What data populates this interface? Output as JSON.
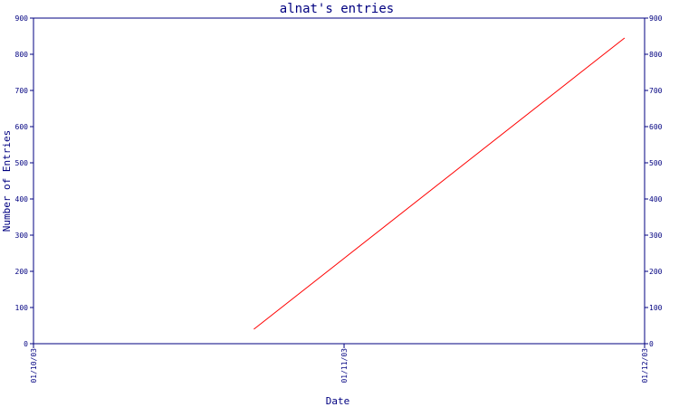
{
  "chart_data": {
    "type": "line",
    "title": "alnat's entries",
    "xlabel": "Date",
    "ylabel": "Number of Entries",
    "ylim": [
      0,
      900
    ],
    "yticks": [
      0,
      100,
      200,
      300,
      400,
      500,
      600,
      700,
      800,
      900
    ],
    "xlim": [
      "2003-10-01",
      "2003-12-01"
    ],
    "xticks": [
      {
        "date": "2003-10-01",
        "label": "01/10/03"
      },
      {
        "date": "2003-11-01",
        "label": "01/11/03"
      },
      {
        "date": "2003-12-01",
        "label": "01/12/03"
      }
    ],
    "grid": false,
    "colors": {
      "axes": "#000080",
      "series": "#ff0000"
    },
    "series": [
      {
        "x": [
          "2003-10-23",
          "2003-11-29"
        ],
        "values": [
          40,
          845
        ]
      }
    ]
  }
}
